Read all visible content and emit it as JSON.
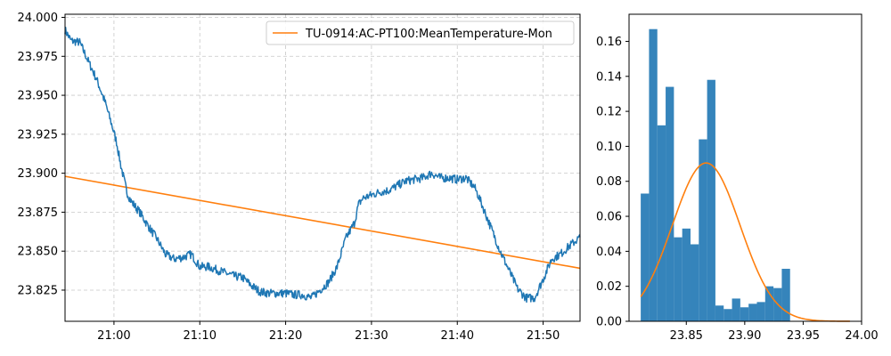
{
  "chart_data": [
    {
      "type": "line",
      "x_ticks": [
        "21:00",
        "21:10",
        "21:20",
        "21:30",
        "21:40",
        "21:50"
      ],
      "x_tick_minutes": [
        1260,
        1270,
        1280,
        1290,
        1300,
        1310
      ],
      "xlim_minutes": [
        1254.3,
        1314.3
      ],
      "y_ticks": [
        "23.825",
        "23.850",
        "23.875",
        "23.900",
        "23.925",
        "23.950",
        "23.975",
        "24.000"
      ],
      "ylim": [
        23.805,
        24.002
      ],
      "grid": true,
      "legend_position": "upper right",
      "series": [
        {
          "name": "TU-0914:AC-PT100:MeanTemperature-Mon",
          "color": "#ff7f0e",
          "x_minutes": [
            1254.3,
            1314.3
          ],
          "y": [
            23.898,
            23.839
          ]
        },
        {
          "color": "#1f77b4",
          "x_minutes": [
            1254.3,
            1255.0,
            1256.0,
            1257.0,
            1258.0,
            1259.0,
            1259.8,
            1260.3,
            1260.8,
            1261.5,
            1262.0,
            1263.0,
            1264.0,
            1265.0,
            1266.0,
            1267.0,
            1268.0,
            1269.0,
            1270.0,
            1271.0,
            1272.0,
            1273.0,
            1274.0,
            1275.0,
            1276.0,
            1277.0,
            1278.0,
            1279.0,
            1280.0,
            1281.0,
            1282.0,
            1283.0,
            1284.0,
            1285.0,
            1286.0,
            1287.0,
            1288.0,
            1288.5,
            1289.0,
            1290.0,
            1291.0,
            1292.0,
            1293.0,
            1294.0,
            1295.0,
            1296.0,
            1297.0,
            1298.0,
            1299.0,
            1300.0,
            1301.0,
            1302.0,
            1302.5,
            1303.0,
            1304.0,
            1305.0,
            1306.0,
            1307.0,
            1308.0,
            1309.0,
            1310.0,
            1311.0,
            1312.0,
            1313.0,
            1314.3
          ],
          "y": [
            23.992,
            23.985,
            23.984,
            23.972,
            23.96,
            23.945,
            23.93,
            23.92,
            23.905,
            23.888,
            23.882,
            23.875,
            23.866,
            23.858,
            23.848,
            23.845,
            23.846,
            23.848,
            23.84,
            23.84,
            23.838,
            23.836,
            23.834,
            23.833,
            23.828,
            23.824,
            23.823,
            23.823,
            23.823,
            23.822,
            23.822,
            23.82,
            23.825,
            23.83,
            23.84,
            23.858,
            23.868,
            23.88,
            23.884,
            23.886,
            23.888,
            23.889,
            23.892,
            23.895,
            23.896,
            23.897,
            23.9,
            23.897,
            23.897,
            23.896,
            23.897,
            23.891,
            23.885,
            23.878,
            23.864,
            23.85,
            23.838,
            23.826,
            23.82,
            23.82,
            23.832,
            23.845,
            23.848,
            23.853,
            23.859
          ]
        }
      ]
    },
    {
      "type": "bar",
      "x_ticks": [
        "23.85",
        "23.90",
        "23.95",
        "24.00"
      ],
      "xlim": [
        23.801,
        24.0
      ],
      "y_ticks": [
        "0.00",
        "0.02",
        "0.04",
        "0.06",
        "0.08",
        "0.10",
        "0.12",
        "0.14",
        "0.16"
      ],
      "ylim": [
        0,
        0.1755
      ],
      "bins": {
        "start": 23.811,
        "width": 0.0071,
        "values": [
          0.073,
          0.167,
          0.112,
          0.134,
          0.048,
          0.053,
          0.044,
          0.104,
          0.138,
          0.009,
          0.007,
          0.013,
          0.008,
          0.01,
          0.011,
          0.02,
          0.019,
          0.03
        ],
        "color": "#1f77b4"
      },
      "curve": {
        "color": "#ff7f0e",
        "mean": 23.867,
        "peak": 0.0905,
        "sigma": 0.029,
        "x_range": [
          23.811,
          23.99
        ]
      }
    }
  ]
}
